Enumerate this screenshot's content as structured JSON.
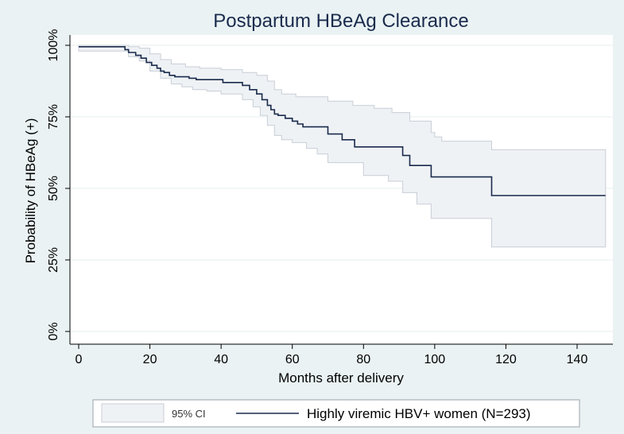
{
  "chart_data": {
    "type": "line",
    "title": "Postpartum HBeAg Clearance",
    "xlabel": "Months after delivery",
    "ylabel": "Probability of HBeAg (+)",
    "xlim": [
      0,
      150
    ],
    "ylim": [
      0,
      100
    ],
    "xticks": [
      0,
      20,
      40,
      60,
      80,
      100,
      120,
      140
    ],
    "xtick_labels": [
      "0",
      "20",
      "40",
      "60",
      "80",
      "100",
      "120",
      "140"
    ],
    "yticks": [
      0,
      25,
      50,
      75,
      100
    ],
    "ytick_labels": [
      "0%",
      "25%",
      "50%",
      "75%",
      "100%"
    ],
    "grid": true,
    "legend_position": "bottom",
    "legend": {
      "ci_label": "95% CI",
      "line_label": "Highly viremic HBV+ women (N=293)"
    },
    "colors": {
      "line": "#1a2b4d",
      "ci_fill": "#eff2f5",
      "ci_edge": "#c8ced6",
      "background": "#eaf2f3",
      "grid": "#e6ecee"
    },
    "series": [
      {
        "name": "Highly viremic HBV+ women (N=293)",
        "step": [
          [
            0,
            99.5
          ],
          [
            12.5,
            99.5
          ],
          [
            13,
            98.5
          ],
          [
            14,
            97.5
          ],
          [
            16,
            96.5
          ],
          [
            17.5,
            95.5
          ],
          [
            19,
            94
          ],
          [
            20.5,
            93
          ],
          [
            22,
            92
          ],
          [
            23,
            91
          ],
          [
            24,
            90.5
          ],
          [
            25.5,
            89.5
          ],
          [
            27,
            89
          ],
          [
            31,
            88.5
          ],
          [
            33,
            88
          ],
          [
            39,
            88
          ],
          [
            40.5,
            87
          ],
          [
            44,
            87
          ],
          [
            46,
            86
          ],
          [
            48,
            84.5
          ],
          [
            50,
            83
          ],
          [
            51.5,
            81
          ],
          [
            53,
            79
          ],
          [
            54,
            77.5
          ],
          [
            55,
            76
          ],
          [
            56,
            75.5
          ],
          [
            58,
            74.5
          ],
          [
            60,
            73.5
          ],
          [
            61.5,
            72.5
          ],
          [
            63,
            71.5
          ],
          [
            70,
            69
          ],
          [
            74,
            67
          ],
          [
            77.5,
            64.5
          ],
          [
            91,
            61.5
          ],
          [
            93,
            58
          ],
          [
            99,
            54
          ],
          [
            116,
            47.5
          ],
          [
            148,
            47.5
          ]
        ]
      },
      {
        "name": "95% CI upper",
        "step": [
          [
            0,
            100
          ],
          [
            12.5,
            100
          ],
          [
            14,
            99.5
          ],
          [
            17,
            99
          ],
          [
            20,
            97
          ],
          [
            23,
            95
          ],
          [
            26,
            93.5
          ],
          [
            30,
            92.5
          ],
          [
            34,
            92
          ],
          [
            40,
            91.5
          ],
          [
            46,
            90.5
          ],
          [
            50,
            89.5
          ],
          [
            53,
            87.5
          ],
          [
            55,
            84.5
          ],
          [
            57,
            83
          ],
          [
            61,
            82
          ],
          [
            70,
            80.5
          ],
          [
            77,
            79
          ],
          [
            83,
            78
          ],
          [
            88,
            76.5
          ],
          [
            93,
            73.5
          ],
          [
            99,
            69.5
          ],
          [
            100,
            68
          ],
          [
            102,
            66.5
          ],
          [
            116,
            63.5
          ],
          [
            148,
            63.5
          ]
        ]
      },
      {
        "name": "95% CI lower",
        "step": [
          [
            0,
            98
          ],
          [
            12.5,
            98
          ],
          [
            14,
            96
          ],
          [
            17,
            94.5
          ],
          [
            20,
            91
          ],
          [
            23,
            88.5
          ],
          [
            26,
            86.5
          ],
          [
            29,
            85.5
          ],
          [
            32,
            84.5
          ],
          [
            36,
            84
          ],
          [
            40,
            83
          ],
          [
            46,
            81
          ],
          [
            49,
            78.5
          ],
          [
            51,
            75.5
          ],
          [
            53,
            72
          ],
          [
            55,
            68.5
          ],
          [
            57,
            67
          ],
          [
            60,
            66
          ],
          [
            64,
            64
          ],
          [
            67,
            62
          ],
          [
            70,
            59
          ],
          [
            80,
            54.5
          ],
          [
            87,
            52.5
          ],
          [
            91,
            48.5
          ],
          [
            95,
            44.5
          ],
          [
            99,
            39.5
          ],
          [
            116,
            29.5
          ],
          [
            148,
            29.5
          ]
        ]
      }
    ]
  }
}
